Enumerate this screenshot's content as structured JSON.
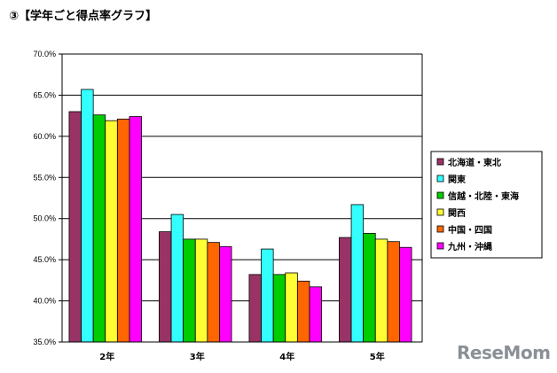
{
  "heading": "③【学年ごと得点率グラフ】",
  "watermark": "ReseMom",
  "chart_data": {
    "type": "bar",
    "title": "",
    "xlabel": "",
    "ylabel": "",
    "ylim": [
      35.0,
      70.0
    ],
    "yticks": [
      "35.0%",
      "40.0%",
      "45.0%",
      "50.0%",
      "55.0%",
      "60.0%",
      "65.0%",
      "70.0%"
    ],
    "grid": true,
    "legend_position": "right",
    "categories": [
      "2年",
      "3年",
      "4年",
      "5年"
    ],
    "series": [
      {
        "name": "北海道・東北",
        "color": "#993366",
        "values": [
          63.0,
          48.4,
          43.2,
          47.7
        ]
      },
      {
        "name": "関東",
        "color": "#33FFFF",
        "values": [
          65.7,
          50.5,
          46.3,
          51.7
        ]
      },
      {
        "name": "信越・北陸・東海",
        "color": "#00CC00",
        "values": [
          62.6,
          47.5,
          43.2,
          48.2
        ]
      },
      {
        "name": "関西",
        "color": "#FFFF33",
        "values": [
          61.9,
          47.5,
          43.4,
          47.5
        ]
      },
      {
        "name": "中国・四国",
        "color": "#FF6600",
        "values": [
          62.1,
          47.1,
          42.4,
          47.2
        ]
      },
      {
        "name": "九州・沖縄",
        "color": "#FF00FF",
        "values": [
          62.4,
          46.6,
          41.7,
          46.5
        ]
      }
    ]
  }
}
